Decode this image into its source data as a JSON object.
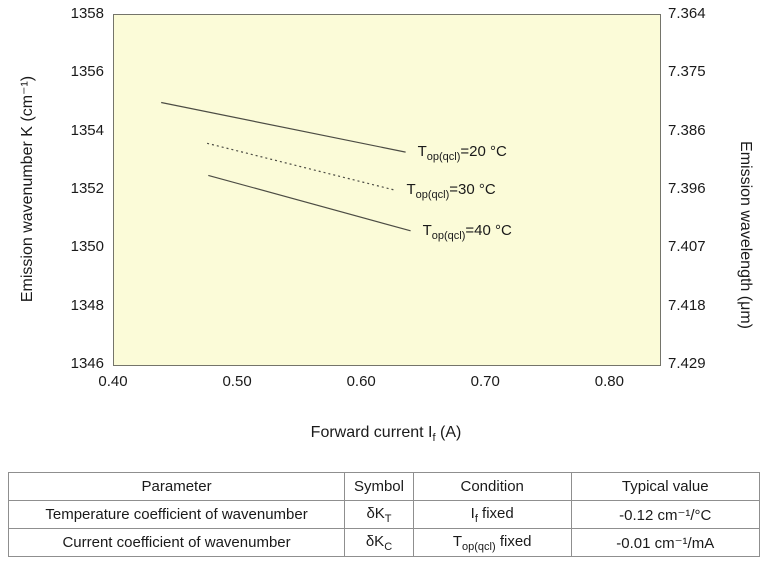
{
  "chart_data": {
    "type": "line",
    "title": "",
    "xlabel": {
      "pre": "Forward current I",
      "sub": "f",
      "post": " (A)"
    },
    "ylabel_left": "Emission wavenumber K (cm⁻¹)",
    "ylabel_right": "Emission wavelength (μm)",
    "xlim": [
      0.4,
      0.84
    ],
    "ylim": [
      1346,
      1358
    ],
    "grid": false,
    "plot_bg": "#fbfbd8",
    "line_color": "#4c4c44",
    "x_ticks": [
      {
        "v": 0.4,
        "label": "0.40"
      },
      {
        "v": 0.5,
        "label": "0.50"
      },
      {
        "v": 0.6,
        "label": "0.60"
      },
      {
        "v": 0.7,
        "label": "0.70"
      },
      {
        "v": 0.8,
        "label": "0.80"
      }
    ],
    "y_ticks": [
      {
        "v": 1358,
        "left": "1358",
        "right": "7.364"
      },
      {
        "v": 1356,
        "left": "1356",
        "right": "7.375"
      },
      {
        "v": 1354,
        "left": "1354",
        "right": "7.386"
      },
      {
        "v": 1352,
        "left": "1352",
        "right": "7.396"
      },
      {
        "v": 1350,
        "left": "1350",
        "right": "7.407"
      },
      {
        "v": 1348,
        "left": "1348",
        "right": "7.418"
      },
      {
        "v": 1346,
        "left": "1346",
        "right": "7.429"
      }
    ],
    "series": [
      {
        "label_pre": "T",
        "label_sub": "op(qcl)",
        "label_post": "=20 °C",
        "style": "solid",
        "points": [
          [
            0.438,
            1355.0
          ],
          [
            0.635,
            1353.3
          ]
        ]
      },
      {
        "label_pre": "T",
        "label_sub": "op(qcl)",
        "label_post": "=30 °C",
        "style": "dotted",
        "points": [
          [
            0.475,
            1353.6
          ],
          [
            0.626,
            1352.0
          ]
        ]
      },
      {
        "label_pre": "T",
        "label_sub": "op(qcl)",
        "label_post": "=40 °C",
        "style": "solid",
        "points": [
          [
            0.476,
            1352.5
          ],
          [
            0.639,
            1350.6
          ]
        ]
      }
    ]
  },
  "table": {
    "headers": [
      "Parameter",
      "Symbol",
      "Condition",
      "Typical value"
    ],
    "rows": [
      {
        "parameter": "Temperature coefficient of wavenumber",
        "symbol_pre": "δK",
        "symbol_sub": "T",
        "condition_pre": "I",
        "condition_sub": "f",
        "condition_post": " fixed",
        "value": "-0.12 cm⁻¹/°C"
      },
      {
        "parameter": "Current coefficient of wavenumber",
        "symbol_pre": "δK",
        "symbol_sub": "C",
        "condition_pre": "T",
        "condition_sub": "op(qcl)",
        "condition_post": " fixed",
        "value": "-0.01 cm⁻¹/mA"
      }
    ]
  }
}
